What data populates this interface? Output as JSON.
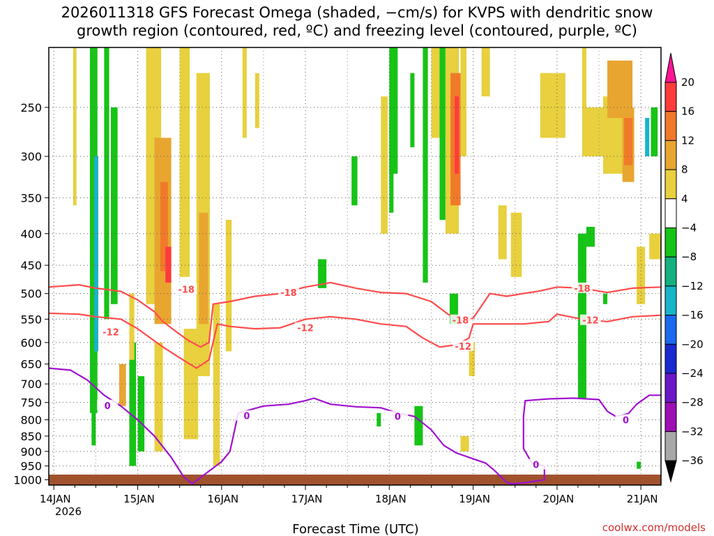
{
  "chart_data": {
    "type": "heatmap",
    "title_lines": [
      "2026011318 GFS Forecast Omega (shaded, −cm/s) for KVPS with dendritic snow",
      "growth region (contoured, red, ºC) and freezing level (contoured, purple, ºC)"
    ],
    "xlabel": "Forecast Time (UTC)",
    "x_ticks": [
      {
        "label": "14JAN",
        "day": 0
      },
      {
        "label": "15JAN",
        "day": 1
      },
      {
        "label": "16JAN",
        "day": 2
      },
      {
        "label": "17JAN",
        "day": 3
      },
      {
        "label": "18JAN",
        "day": 4
      },
      {
        "label": "19JAN",
        "day": 5
      },
      {
        "label": "20JAN",
        "day": 6
      },
      {
        "label": "21JAN",
        "day": 7
      }
    ],
    "x_sublabel": "2026",
    "xlim_days": [
      -0.06,
      7.24
    ],
    "y_ticks": [
      250,
      300,
      350,
      400,
      450,
      500,
      550,
      600,
      650,
      700,
      750,
      800,
      850,
      900,
      950,
      1000
    ],
    "ylim_hpa": [
      200,
      1020
    ],
    "colorbar": {
      "levels": [
        20,
        16,
        12,
        8,
        4,
        -4,
        -8,
        -12,
        -16,
        -20,
        -24,
        -28,
        -32,
        -36
      ],
      "colors": [
        "#ff1493",
        "#ff3c3c",
        "#f07a2a",
        "#e8a530",
        "#e8d03e",
        "#ffffff",
        "#16c416",
        "#14b080",
        "#18b4c8",
        "#1c6af0",
        "#1a2ad0",
        "#6a18c8",
        "#9c10b4",
        "#a8a8a8",
        "#000000"
      ]
    },
    "contours": {
      "minus18": {
        "label": "-18",
        "color": "#ff4b4b",
        "points": [
          [
            -0.06,
            488
          ],
          [
            0.3,
            484
          ],
          [
            0.5,
            490
          ],
          [
            0.8,
            496
          ],
          [
            1.0,
            512
          ],
          [
            1.2,
            535
          ],
          [
            1.3,
            555
          ],
          [
            1.45,
            575
          ],
          [
            1.6,
            595
          ],
          [
            1.75,
            610
          ],
          [
            1.85,
            600
          ],
          [
            1.9,
            520
          ],
          [
            2.1,
            515
          ],
          [
            2.4,
            505
          ],
          [
            2.7,
            500
          ],
          [
            3.0,
            488
          ],
          [
            3.3,
            480
          ],
          [
            3.6,
            490
          ],
          [
            3.9,
            498
          ],
          [
            4.2,
            500
          ],
          [
            4.5,
            515
          ],
          [
            4.7,
            540
          ],
          [
            4.85,
            553
          ],
          [
            5.0,
            548
          ],
          [
            5.2,
            500
          ],
          [
            5.4,
            505
          ],
          [
            5.6,
            500
          ],
          [
            5.8,
            495
          ],
          [
            6.0,
            488
          ],
          [
            6.3,
            490
          ],
          [
            6.6,
            498
          ],
          [
            6.9,
            490
          ],
          [
            7.24,
            488
          ]
        ]
      },
      "minus12": {
        "label": "-12",
        "color": "#ff4b4b",
        "points": [
          [
            -0.06,
            538
          ],
          [
            0.3,
            540
          ],
          [
            0.5,
            545
          ],
          [
            0.8,
            550
          ],
          [
            1.0,
            570
          ],
          [
            1.3,
            610
          ],
          [
            1.5,
            635
          ],
          [
            1.7,
            660
          ],
          [
            1.85,
            640
          ],
          [
            1.95,
            560
          ],
          [
            2.1,
            565
          ],
          [
            2.4,
            570
          ],
          [
            2.7,
            568
          ],
          [
            3.0,
            550
          ],
          [
            3.3,
            545
          ],
          [
            3.6,
            550
          ],
          [
            3.9,
            560
          ],
          [
            4.2,
            565
          ],
          [
            4.4,
            590
          ],
          [
            4.6,
            610
          ],
          [
            4.8,
            605
          ],
          [
            4.95,
            590
          ],
          [
            5.0,
            560
          ],
          [
            5.3,
            560
          ],
          [
            5.6,
            560
          ],
          [
            5.9,
            555
          ],
          [
            6.0,
            540
          ],
          [
            6.3,
            550
          ],
          [
            6.6,
            555
          ],
          [
            6.9,
            545
          ],
          [
            7.24,
            542
          ]
        ]
      },
      "zero": {
        "label": "0",
        "color": "#a010d0",
        "points": [
          [
            -0.06,
            660
          ],
          [
            0.2,
            665
          ],
          [
            0.4,
            690
          ],
          [
            0.6,
            730
          ],
          [
            0.8,
            760
          ],
          [
            1.0,
            800
          ],
          [
            1.2,
            850
          ],
          [
            1.4,
            920
          ],
          [
            1.55,
            990
          ],
          [
            1.65,
            1015
          ],
          [
            1.8,
            980
          ],
          [
            2.0,
            935
          ],
          [
            2.1,
            900
          ],
          [
            2.2,
            780
          ],
          [
            2.5,
            760
          ],
          [
            2.8,
            755
          ],
          [
            3.0,
            745
          ],
          [
            3.1,
            738
          ],
          [
            3.3,
            755
          ],
          [
            3.6,
            762
          ],
          [
            3.9,
            765
          ],
          [
            4.1,
            780
          ],
          [
            4.3,
            790
          ],
          [
            4.5,
            830
          ],
          [
            4.65,
            880
          ],
          [
            4.8,
            905
          ],
          [
            5.0,
            925
          ],
          [
            5.15,
            940
          ],
          [
            5.25,
            965
          ],
          [
            5.4,
            1010
          ],
          [
            5.45,
            1015
          ],
          [
            5.6,
            1012
          ],
          [
            5.85,
            1000
          ],
          [
            5.85,
            950
          ],
          [
            5.7,
            940
          ],
          [
            5.6,
            890
          ],
          [
            5.6,
            790
          ],
          [
            5.62,
            745
          ],
          [
            5.9,
            740
          ],
          [
            6.2,
            738
          ],
          [
            6.5,
            742
          ],
          [
            6.6,
            775
          ],
          [
            6.7,
            790
          ],
          [
            6.85,
            782
          ],
          [
            6.95,
            755
          ],
          [
            7.1,
            730
          ],
          [
            7.24,
            730
          ]
        ]
      }
    },
    "shaded_cells": [
      {
        "d0": 0.43,
        "d1": 0.52,
        "p0": 200,
        "p1": 780,
        "v": -6
      },
      {
        "d0": 0.48,
        "d1": 0.53,
        "p0": 300,
        "p1": 620,
        "v": -12
      },
      {
        "d0": 0.6,
        "d1": 0.66,
        "p0": 200,
        "p1": 550,
        "v": -6
      },
      {
        "d0": 0.68,
        "d1": 0.76,
        "p0": 250,
        "p1": 520,
        "v": -6
      },
      {
        "d0": 0.45,
        "d1": 0.5,
        "p0": 700,
        "p1": 880,
        "v": -6
      },
      {
        "d0": 0.9,
        "d1": 0.98,
        "p0": 600,
        "p1": 950,
        "v": -6
      },
      {
        "d0": 1.1,
        "d1": 1.28,
        "p0": 200,
        "p1": 520,
        "v": 6
      },
      {
        "d0": 1.2,
        "d1": 1.4,
        "p0": 280,
        "p1": 560,
        "v": 10
      },
      {
        "d0": 1.27,
        "d1": 1.36,
        "p0": 330,
        "p1": 460,
        "v": 14
      },
      {
        "d0": 1.33,
        "d1": 1.4,
        "p0": 420,
        "p1": 480,
        "v": 18
      },
      {
        "d0": 1.5,
        "d1": 1.62,
        "p0": 200,
        "p1": 470,
        "v": 6
      },
      {
        "d0": 1.7,
        "d1": 1.86,
        "p0": 220,
        "p1": 680,
        "v": 6
      },
      {
        "d0": 1.73,
        "d1": 1.84,
        "p0": 370,
        "p1": 560,
        "v": 10
      },
      {
        "d0": 1.2,
        "d1": 1.3,
        "p0": 600,
        "p1": 900,
        "v": 6
      },
      {
        "d0": 1.55,
        "d1": 1.72,
        "p0": 570,
        "p1": 860,
        "v": 6
      },
      {
        "d0": 1.9,
        "d1": 1.98,
        "p0": 520,
        "p1": 950,
        "v": 6
      },
      {
        "d0": 2.05,
        "d1": 2.12,
        "p0": 380,
        "p1": 620,
        "v": 6
      },
      {
        "d0": 2.25,
        "d1": 2.3,
        "p0": 200,
        "p1": 280,
        "v": 6
      },
      {
        "d0": 2.4,
        "d1": 2.45,
        "p0": 220,
        "p1": 270,
        "v": 6
      },
      {
        "d0": 1.0,
        "d1": 1.08,
        "p0": 680,
        "p1": 900,
        "v": -6
      },
      {
        "d0": 0.23,
        "d1": 0.27,
        "p0": 200,
        "p1": 360,
        "v": 6
      },
      {
        "d0": 0.78,
        "d1": 0.86,
        "p0": 650,
        "p1": 760,
        "v": 10
      },
      {
        "d0": 0.9,
        "d1": 0.96,
        "p0": 500,
        "p1": 640,
        "v": 6
      },
      {
        "d0": 3.15,
        "d1": 3.25,
        "p0": 440,
        "p1": 490,
        "v": -6
      },
      {
        "d0": 3.55,
        "d1": 3.62,
        "p0": 300,
        "p1": 360,
        "v": -6
      },
      {
        "d0": 3.85,
        "d1": 3.9,
        "p0": 780,
        "p1": 820,
        "v": -6
      },
      {
        "d0": 3.9,
        "d1": 3.98,
        "p0": 240,
        "p1": 400,
        "v": 6
      },
      {
        "d0": 4.0,
        "d1": 4.1,
        "p0": 200,
        "p1": 320,
        "v": -6
      },
      {
        "d0": 4.0,
        "d1": 4.05,
        "p0": 260,
        "p1": 370,
        "v": -6
      },
      {
        "d0": 4.25,
        "d1": 4.3,
        "p0": 220,
        "p1": 290,
        "v": -6
      },
      {
        "d0": 4.3,
        "d1": 4.4,
        "p0": 760,
        "p1": 880,
        "v": -6
      },
      {
        "d0": 4.4,
        "d1": 4.46,
        "p0": 200,
        "p1": 480,
        "v": -6
      },
      {
        "d0": 4.5,
        "d1": 4.6,
        "p0": 200,
        "p1": 280,
        "v": 6
      },
      {
        "d0": 4.6,
        "d1": 4.67,
        "p0": 200,
        "p1": 380,
        "v": -6
      },
      {
        "d0": 4.67,
        "d1": 4.83,
        "p0": 200,
        "p1": 400,
        "v": 6
      },
      {
        "d0": 4.73,
        "d1": 4.85,
        "p0": 220,
        "p1": 360,
        "v": 12
      },
      {
        "d0": 4.78,
        "d1": 4.83,
        "p0": 240,
        "p1": 320,
        "v": 18
      },
      {
        "d0": 4.85,
        "d1": 4.92,
        "p0": 200,
        "p1": 300,
        "v": 6
      },
      {
        "d0": 4.72,
        "d1": 4.82,
        "p0": 500,
        "p1": 560,
        "v": -6
      },
      {
        "d0": 4.85,
        "d1": 4.95,
        "p0": 850,
        "p1": 900,
        "v": 6
      },
      {
        "d0": 4.95,
        "d1": 5.02,
        "p0": 600,
        "p1": 680,
        "v": 6
      },
      {
        "d0": 5.1,
        "d1": 5.2,
        "p0": 200,
        "p1": 240,
        "v": 6
      },
      {
        "d0": 5.3,
        "d1": 5.4,
        "p0": 360,
        "p1": 440,
        "v": 6
      },
      {
        "d0": 5.45,
        "d1": 5.58,
        "p0": 370,
        "p1": 470,
        "v": 6
      },
      {
        "d0": 5.8,
        "d1": 6.1,
        "p0": 220,
        "p1": 280,
        "v": 6
      },
      {
        "d0": 6.25,
        "d1": 6.35,
        "p0": 400,
        "p1": 740,
        "v": -6
      },
      {
        "d0": 6.35,
        "d1": 6.45,
        "p0": 390,
        "p1": 420,
        "v": -6
      },
      {
        "d0": 6.3,
        "d1": 6.35,
        "p0": 200,
        "p1": 260,
        "v": 6
      },
      {
        "d0": 6.3,
        "d1": 6.6,
        "p0": 250,
        "p1": 300,
        "v": 6
      },
      {
        "d0": 6.55,
        "d1": 6.9,
        "p0": 240,
        "p1": 320,
        "v": 6
      },
      {
        "d0": 6.6,
        "d1": 6.9,
        "p0": 210,
        "p1": 260,
        "v": 10
      },
      {
        "d0": 6.78,
        "d1": 6.92,
        "p0": 250,
        "p1": 330,
        "v": 10
      },
      {
        "d0": 6.8,
        "d1": 6.9,
        "p0": 260,
        "p1": 310,
        "v": 12
      },
      {
        "d0": 6.95,
        "d1": 7.05,
        "p0": 420,
        "p1": 520,
        "v": 6
      },
      {
        "d0": 7.12,
        "d1": 7.2,
        "p0": 250,
        "p1": 300,
        "v": -6
      },
      {
        "d0": 7.05,
        "d1": 7.1,
        "p0": 260,
        "p1": 300,
        "v": -12
      },
      {
        "d0": 7.1,
        "d1": 7.24,
        "p0": 400,
        "p1": 440,
        "v": 6
      },
      {
        "d0": 6.55,
        "d1": 6.6,
        "p0": 500,
        "p1": 520,
        "v": -6
      },
      {
        "d0": 6.95,
        "d1": 7.0,
        "p0": 935,
        "p1": 960,
        "v": -6
      }
    ],
    "surface_color": "#a0522d"
  },
  "credit": "coolwx.com/models"
}
